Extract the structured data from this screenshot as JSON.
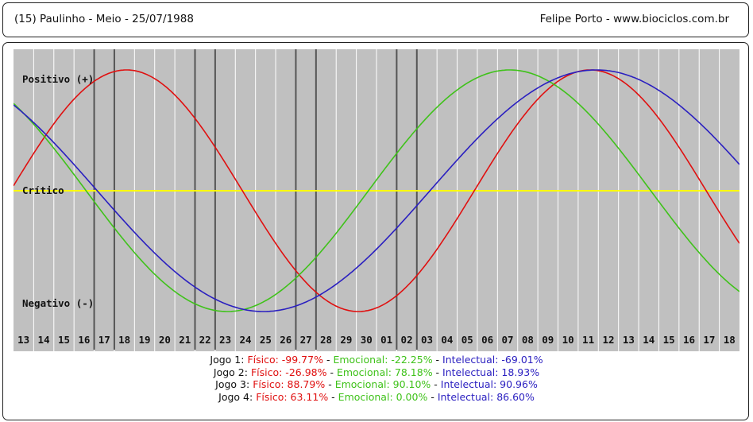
{
  "header": {
    "left": "(15)  Paulinho - Meio -  25/07/1988",
    "right": "Felipe Porto   -   www.biociclos.com.br"
  },
  "chart_data": {
    "type": "line",
    "title": "",
    "labels": {
      "positive": "Positivo (+)",
      "critical": "Crítico",
      "negative": "Negativo (-)"
    },
    "categories": [
      "13",
      "14",
      "15",
      "16",
      "17",
      "18",
      "19",
      "20",
      "21",
      "22",
      "23",
      "24",
      "25",
      "26",
      "27",
      "28",
      "29",
      "30",
      "01",
      "02",
      "03",
      "04",
      "05",
      "06",
      "07",
      "08",
      "09",
      "10",
      "11",
      "12",
      "13",
      "14",
      "15",
      "16",
      "17",
      "18"
    ],
    "ylim": [
      -100,
      100
    ],
    "series": [
      {
        "key": "fisico",
        "color": "#e01010",
        "period": 23,
        "phase_day": 28.6,
        "amplitude": 100
      },
      {
        "key": "emocional",
        "color": "#3fc21a",
        "period": 28,
        "phase_day": 24.6,
        "amplitude": 100
      },
      {
        "key": "intelectual",
        "color": "#2a1fc0",
        "period": 33,
        "phase_day": 28.9,
        "amplitude": 100
      }
    ],
    "game_markers": [
      {
        "jogo": "Jogo 1",
        "days": [
          4.0,
          5.0
        ]
      },
      {
        "jogo": "Jogo 2",
        "days": [
          9.0,
          10.0
        ]
      },
      {
        "jogo": "Jogo 3",
        "days": [
          14.0,
          15.0
        ]
      },
      {
        "jogo": "Jogo 4",
        "days": [
          19.0,
          20.0
        ]
      }
    ],
    "colors": {
      "background": "#c0c0c0",
      "grid": "#ffffff",
      "marker": "#555555",
      "critical": "#ffff00"
    }
  },
  "jogos": [
    {
      "label": "Jogo 1:",
      "fisico": "Físico: -99.77%",
      "emocional": "Emocional: -22.25%",
      "intelectual": "Intelectual: -69.01%"
    },
    {
      "label": "Jogo 2:",
      "fisico": "Físico: -26.98%",
      "emocional": "Emocional: 78.18%",
      "intelectual": "Intelectual: 18.93%"
    },
    {
      "label": "Jogo 3:",
      "fisico": "Físico: 88.79%",
      "emocional": "Emocional: 90.10%",
      "intelectual": "Intelectual: 90.96%"
    },
    {
      "label": "Jogo 4:",
      "fisico": "Físico: 63.11%",
      "emocional": "Emocional: 0.00%",
      "intelectual": "Intelectual: 86.60%"
    }
  ],
  "separator": " - "
}
